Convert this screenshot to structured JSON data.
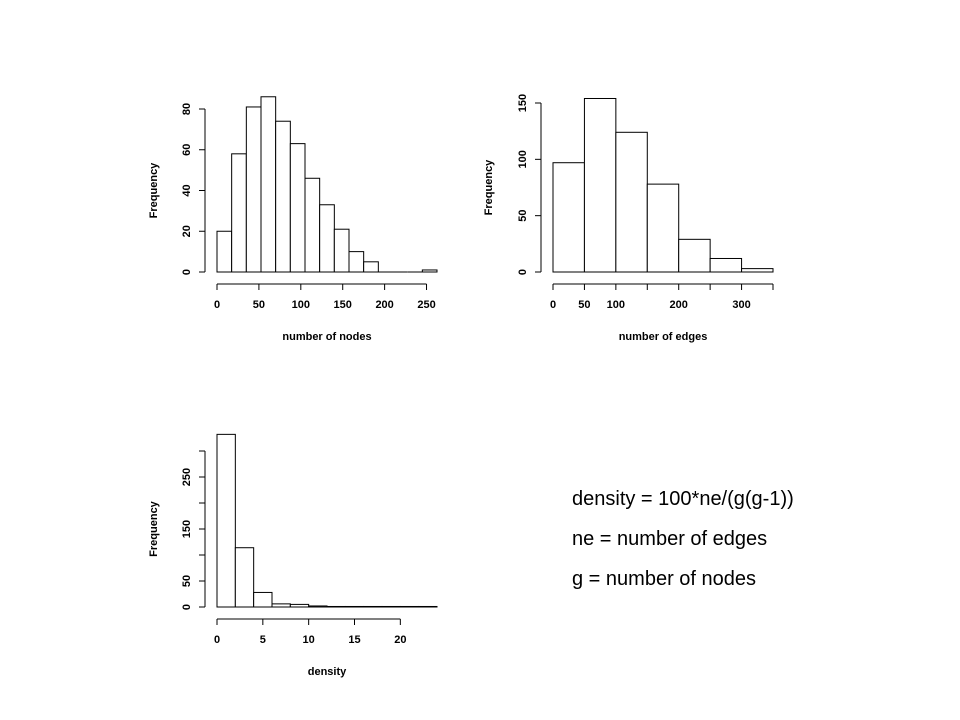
{
  "chart_data": [
    {
      "type": "bar",
      "subtype": "histogram",
      "xlabel": "number of nodes",
      "ylabel": "Frequency",
      "bins": [
        [
          0,
          17.5
        ],
        [
          17.5,
          35
        ],
        [
          35,
          52.5
        ],
        [
          52.5,
          70
        ],
        [
          70,
          87.5
        ],
        [
          87.5,
          105
        ],
        [
          105,
          122.5
        ],
        [
          122.5,
          140
        ],
        [
          140,
          157.5
        ],
        [
          157.5,
          175
        ],
        [
          175,
          192.5
        ],
        [
          192.5,
          210
        ],
        [
          210,
          227.5
        ],
        [
          227.5,
          245
        ],
        [
          245,
          262.5
        ]
      ],
      "values": [
        20,
        58,
        81,
        86,
        74,
        63,
        46,
        33,
        21,
        10,
        5,
        0,
        0,
        0,
        1
      ],
      "xlim": [
        0,
        262.5
      ],
      "ylim": [
        0,
        80
      ],
      "xticks": [
        0,
        50,
        100,
        150,
        200,
        250
      ],
      "xtick_labels": [
        "0",
        "50",
        "100",
        "150",
        "200",
        "250"
      ],
      "yticks": [
        0,
        20,
        40,
        60,
        80
      ],
      "ytick_labels": [
        "0",
        "20",
        "40",
        "60",
        "80"
      ]
    },
    {
      "type": "bar",
      "subtype": "histogram",
      "xlabel": "number of edges",
      "ylabel": "Frequency",
      "bins": [
        [
          0,
          50
        ],
        [
          50,
          100
        ],
        [
          100,
          150
        ],
        [
          150,
          200
        ],
        [
          200,
          250
        ],
        [
          250,
          300
        ],
        [
          300,
          350
        ]
      ],
      "values": [
        97,
        154,
        124,
        78,
        29,
        12,
        3
      ],
      "xlim": [
        0,
        350
      ],
      "ylim": [
        0,
        150
      ],
      "xticks": [
        0,
        50,
        100,
        150,
        200,
        250,
        300,
        350
      ],
      "xtick_labels": [
        "0",
        "50",
        "100",
        "",
        "200",
        "",
        "300",
        ""
      ],
      "yticks": [
        0,
        50,
        100,
        150
      ],
      "ytick_labels": [
        "0",
        "50",
        "100",
        "150"
      ]
    },
    {
      "type": "bar",
      "subtype": "histogram",
      "xlabel": "density",
      "ylabel": "Frequency",
      "bins": [
        [
          0,
          2
        ],
        [
          2,
          4
        ],
        [
          4,
          6
        ],
        [
          6,
          8
        ],
        [
          8,
          10
        ],
        [
          10,
          12
        ],
        [
          12,
          14
        ],
        [
          14,
          16
        ],
        [
          16,
          18
        ],
        [
          18,
          20
        ],
        [
          20,
          22
        ],
        [
          22,
          24
        ]
      ],
      "values": [
        332,
        114,
        28,
        6,
        5,
        2,
        1,
        1,
        1,
        1,
        1,
        1
      ],
      "xlim": [
        0,
        24
      ],
      "ylim": [
        0,
        300
      ],
      "xticks": [
        0,
        5,
        10,
        15,
        20
      ],
      "xtick_labels": [
        "0",
        "5",
        "10",
        "15",
        "20"
      ],
      "yticks": [
        0,
        50,
        100,
        150,
        200,
        250,
        300
      ],
      "ytick_labels": [
        "0",
        "50",
        "",
        "150",
        "",
        "250",
        ""
      ]
    }
  ],
  "notes": {
    "line1": "density = 100*ne/(g(g-1))",
    "line2": "ne = number of edges",
    "line3": "g = number of nodes"
  }
}
